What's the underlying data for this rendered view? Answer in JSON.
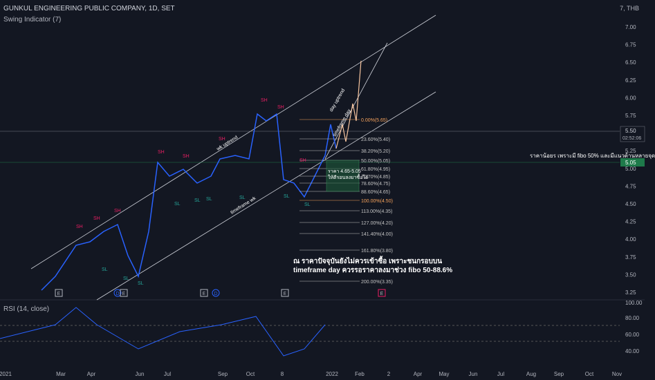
{
  "header": {
    "symbol_title": "GUNKUL ENGINEERING PUBLIC COMPANY, 1D, SET",
    "indicator": "Swing Indicator (7)",
    "currency": "THB"
  },
  "rsi": {
    "title": "RSI (14, close)",
    "levels": [
      "100.00",
      "80.00",
      "60.00",
      "40.00"
    ]
  },
  "price_axis": [
    "7.00",
    "6.75",
    "6.50",
    "6.25",
    "6.00",
    "5.75",
    "5.50",
    "5.25",
    "5.00",
    "4.75",
    "4.50",
    "4.25",
    "4.00",
    "3.75",
    "3.50",
    "3.25"
  ],
  "price_top_label": "7,",
  "current_price": {
    "value": "5.50",
    "countdown": "02:52:06"
  },
  "marker_price": "5.05",
  "time_axis": [
    "2021",
    "Mar",
    "Apr",
    "Jun",
    "Jul",
    "Sep",
    "Oct",
    "8",
    "2022",
    "Feb",
    "2",
    "Apr",
    "May",
    "Jun",
    "Jul",
    "Aug",
    "Sep",
    "Oct",
    "Nov"
  ],
  "fib_levels": [
    "0.00%(5.65)",
    "23.60%(5.40)",
    "38.20%(5.20)",
    "50.00%(5.05)",
    "61.80%(4.95)",
    "70.70%(4.85)",
    "78.60%(4.75)",
    "88.60%(4.65)",
    "100.00%(4.50)",
    "113.00%(4.35)",
    "127.00%(4.20)",
    "141.40%(4.00)",
    "161.80%(3.80)",
    "200.00%(3.35)"
  ],
  "trend_labels": {
    "wk_uptrend": "wk uptrend",
    "timeframe_wk": "timeframe wk",
    "day_uptrend": "day uptrend",
    "day_uptrend_2": "timeframe day"
  },
  "swing_labels": {
    "high": "SH",
    "low": "SL"
  },
  "event_markers": [
    "E",
    "D",
    "E",
    "E",
    "D",
    "E",
    "E"
  ],
  "box_text": [
    "ราคา 4.65-5.05",
    "ให้ดีรอนลงมาซื้อได้"
  ],
  "note_lines": [
    "ณ ราคาปัจจุบันยังไม่ควรเข้าซื้อ เพราะชนกรอบบน",
    "timeframe day ควรรอราคาลงมาช่วง fibo 50-88.6%"
  ],
  "thai_note": "ราคาน้อยร เพราะมี fibo 50% และมีแนวต้านหลายจุด",
  "colors": {
    "bg": "#131722",
    "candle": "#2962ff",
    "rsi": "#2962ff",
    "fib": "#c4c4c4",
    "fib_accent": "#f7a35c",
    "box": "#1e5a3a",
    "swing_high": "#e91e63",
    "swing_low": "#26a69a"
  }
}
